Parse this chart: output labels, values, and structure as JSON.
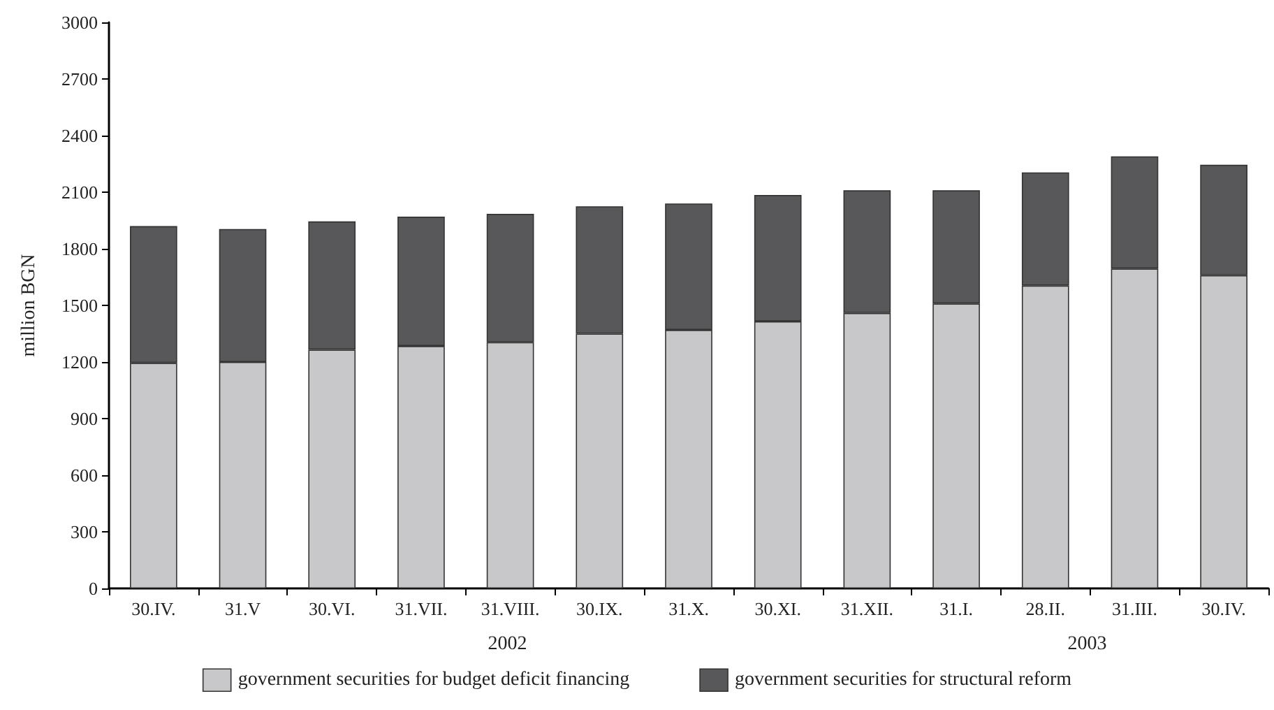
{
  "chart_data": {
    "type": "bar",
    "stacked": true,
    "ylabel": "million BGN",
    "categories": [
      "30.IV.",
      "31.V",
      "30.VI.",
      "31.VII.",
      "31.VIII.",
      "30.IX.",
      "31.X.",
      "30.XI.",
      "31.XII.",
      "31.I.",
      "28.II.",
      "31.III.",
      "30.IV."
    ],
    "series": [
      {
        "name": "government securities for budget deficit financing",
        "color": "#c8c8ca",
        "values": [
          1195,
          1200,
          1265,
          1285,
          1305,
          1350,
          1370,
          1415,
          1460,
          1510,
          1605,
          1695,
          1660
        ]
      },
      {
        "name": "government securities for structural reform",
        "color": "#58585a",
        "values": [
          725,
          705,
          680,
          685,
          680,
          675,
          670,
          670,
          650,
          600,
          600,
          595,
          585
        ]
      }
    ],
    "ylim": [
      0,
      3000
    ],
    "yticks": [
      0,
      300,
      600,
      900,
      1200,
      1500,
      1800,
      2100,
      2400,
      2700,
      3000
    ],
    "annotations": [
      "2002",
      "2003"
    ],
    "grid": false,
    "legend": "bottom"
  }
}
